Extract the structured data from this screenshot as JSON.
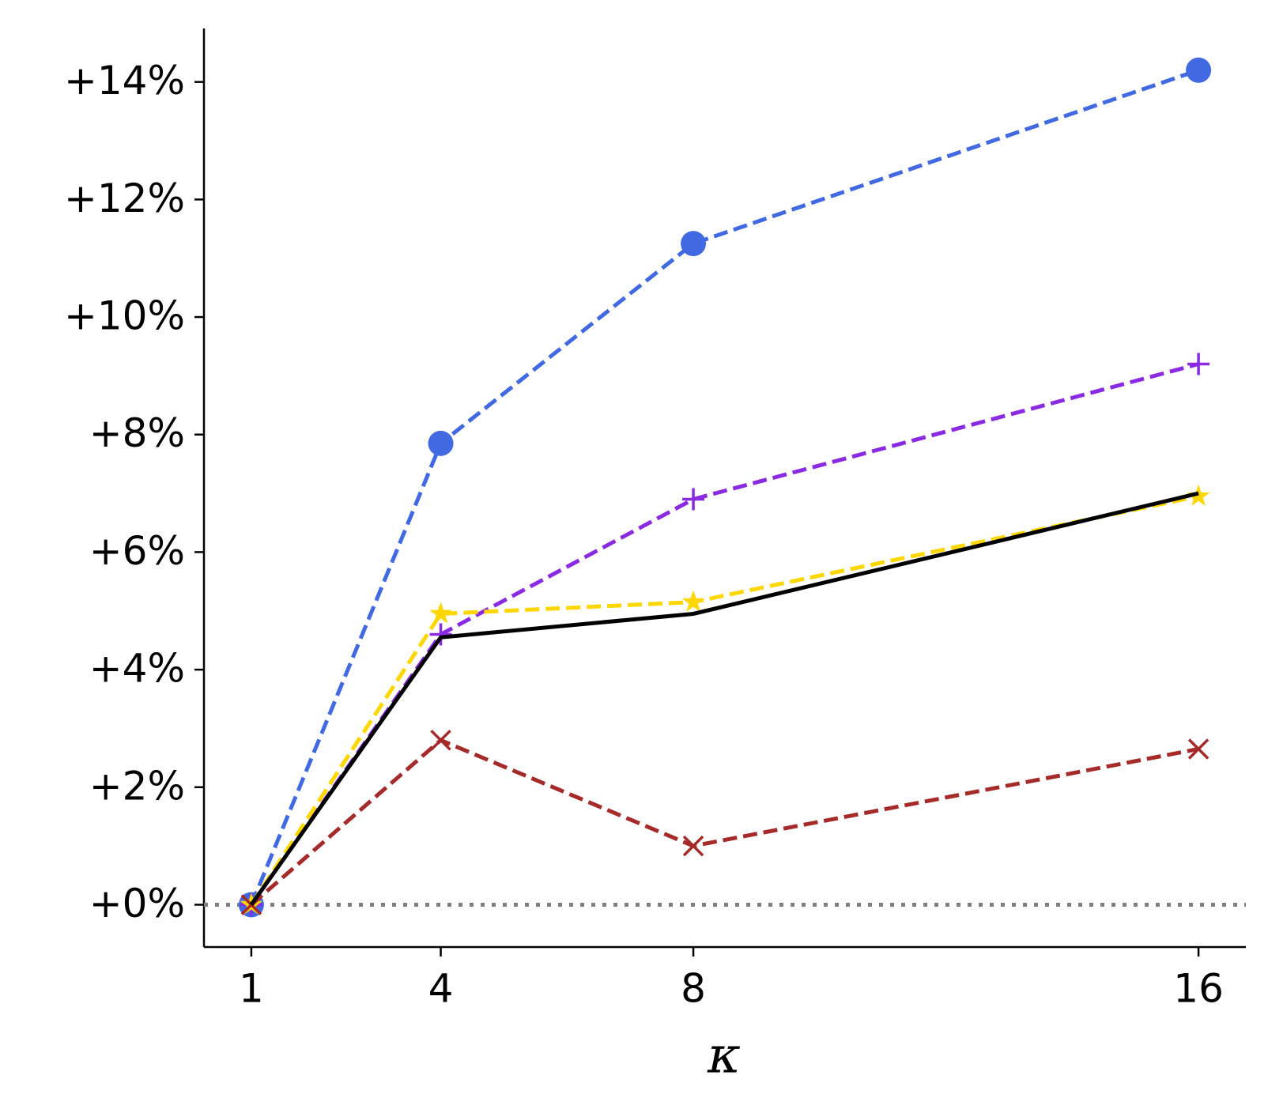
{
  "chart_data": {
    "type": "line",
    "x_label": "κ",
    "xlim": [
      0.25,
      16.75
    ],
    "xticks": [
      1,
      4,
      8,
      16
    ],
    "ylim": [
      -0.72,
      14.91
    ],
    "yticks": [
      {
        "value": 0,
        "label": "+0%"
      },
      {
        "value": 2,
        "label": "+2%"
      },
      {
        "value": 4,
        "label": "+4%"
      },
      {
        "value": 6,
        "label": "+6%"
      },
      {
        "value": 8,
        "label": "+8%"
      },
      {
        "value": 10,
        "label": "+10%"
      },
      {
        "value": 12,
        "label": "+12%"
      },
      {
        "value": 14,
        "label": "+14%"
      }
    ],
    "hline": {
      "value": 0,
      "color": "#808080"
    },
    "x": [
      1,
      4,
      8,
      16
    ],
    "series": [
      {
        "color": "#4169e1",
        "linestyle": "dashed",
        "marker": "circle",
        "values": [
          0,
          7.85,
          11.25,
          14.2
        ]
      },
      {
        "color": "#8a2be2",
        "linestyle": "dashed",
        "marker": "plus",
        "values": [
          0,
          4.6,
          6.9,
          9.2
        ]
      },
      {
        "color": "#ffd700",
        "linestyle": "dashed",
        "marker": "star",
        "values": [
          0,
          4.95,
          5.15,
          6.95
        ]
      },
      {
        "color": "#a52a2a",
        "linestyle": "dashed",
        "marker": "x",
        "values": [
          0,
          2.8,
          1.0,
          2.65
        ]
      },
      {
        "color": "#000000",
        "linestyle": "solid",
        "marker": "none",
        "values": [
          0,
          4.55,
          4.95,
          7.0
        ]
      }
    ]
  }
}
